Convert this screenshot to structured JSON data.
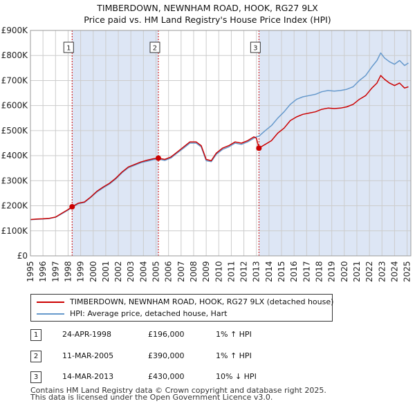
{
  "title": {
    "line1": "TIMBERDOWN, NEWNHAM ROAD, HOOK, RG27 9LX",
    "line2": "Price paid vs. HM Land Registry's House Price Index (HPI)"
  },
  "colors": {
    "property": "#cc0000",
    "hpi": "#6699cc",
    "shade": "#dde6f5",
    "grid": "#cccccc",
    "marker_line": "#cc0000"
  },
  "chart_data": {
    "type": "line",
    "title": "Price paid vs. HM Land Registry's House Price Index (HPI)",
    "xlabel": "",
    "ylabel": "",
    "xlim": [
      1995,
      2025.3
    ],
    "ylim": [
      0,
      900000
    ],
    "y_ticks": [
      0,
      100000,
      200000,
      300000,
      400000,
      500000,
      600000,
      700000,
      800000,
      900000
    ],
    "y_tick_labels": [
      "£0",
      "£100K",
      "£200K",
      "£300K",
      "£400K",
      "£500K",
      "£600K",
      "£700K",
      "£800K",
      "£900K"
    ],
    "x_ticks": [
      1995,
      1996,
      1997,
      1998,
      1999,
      2000,
      2001,
      2002,
      2003,
      2004,
      2005,
      2006,
      2007,
      2008,
      2009,
      2010,
      2011,
      2012,
      2013,
      2014,
      2015,
      2016,
      2017,
      2018,
      2019,
      2020,
      2021,
      2022,
      2023,
      2024,
      2025
    ],
    "grid": true,
    "legend_position": "below",
    "series": [
      {
        "name": "TIMBERDOWN, NEWNHAM ROAD, HOOK, RG27 9LX (detached house)",
        "color": "#cc0000",
        "x": [
          1995.0,
          1995.5,
          1996.0,
          1996.5,
          1997.0,
          1997.5,
          1998.0,
          1998.32,
          1998.8,
          1999.3,
          1999.8,
          2000.3,
          2000.8,
          2001.3,
          2001.8,
          2002.3,
          2002.8,
          2003.3,
          2003.8,
          2004.3,
          2004.8,
          2005.19,
          2005.7,
          2006.2,
          2006.7,
          2007.2,
          2007.7,
          2008.2,
          2008.6,
          2009.0,
          2009.4,
          2009.8,
          2010.3,
          2010.8,
          2011.3,
          2011.8,
          2012.3,
          2012.8,
          2013.0,
          2013.2,
          2013.7,
          2014.2,
          2014.7,
          2015.2,
          2015.7,
          2016.2,
          2016.7,
          2017.2,
          2017.7,
          2018.2,
          2018.7,
          2019.2,
          2019.7,
          2020.2,
          2020.7,
          2021.2,
          2021.7,
          2022.2,
          2022.6,
          2022.9,
          2023.2,
          2023.6,
          2024.0,
          2024.4,
          2024.8,
          2025.1
        ],
        "values": [
          145000,
          147000,
          148000,
          150000,
          155000,
          170000,
          185000,
          196000,
          210000,
          215000,
          235000,
          258000,
          275000,
          290000,
          310000,
          335000,
          355000,
          365000,
          375000,
          382000,
          388000,
          390000,
          385000,
          395000,
          415000,
          435000,
          455000,
          455000,
          440000,
          385000,
          380000,
          410000,
          430000,
          440000,
          455000,
          450000,
          460000,
          475000,
          470000,
          430000,
          445000,
          460000,
          490000,
          510000,
          540000,
          555000,
          565000,
          570000,
          575000,
          585000,
          590000,
          588000,
          590000,
          595000,
          605000,
          625000,
          640000,
          670000,
          690000,
          720000,
          705000,
          690000,
          680000,
          690000,
          670000,
          675000
        ]
      },
      {
        "name": "HPI: Average price, detached house, Hart",
        "color": "#6699cc",
        "x": [
          1995.0,
          1995.5,
          1996.0,
          1996.5,
          1997.0,
          1997.5,
          1998.0,
          1998.32,
          1998.8,
          1999.3,
          1999.8,
          2000.3,
          2000.8,
          2001.3,
          2001.8,
          2002.3,
          2002.8,
          2003.3,
          2003.8,
          2004.3,
          2004.8,
          2005.19,
          2005.7,
          2006.2,
          2006.7,
          2007.2,
          2007.7,
          2008.2,
          2008.6,
          2009.0,
          2009.4,
          2009.8,
          2010.3,
          2010.8,
          2011.3,
          2011.8,
          2012.3,
          2012.8,
          2013.0,
          2013.2,
          2013.7,
          2014.2,
          2014.7,
          2015.2,
          2015.7,
          2016.2,
          2016.7,
          2017.2,
          2017.7,
          2018.2,
          2018.7,
          2019.2,
          2019.7,
          2020.2,
          2020.7,
          2021.2,
          2021.7,
          2022.2,
          2022.6,
          2022.9,
          2023.2,
          2023.6,
          2024.0,
          2024.4,
          2024.8,
          2025.1
        ],
        "values": [
          144000,
          146000,
          147000,
          149000,
          154000,
          168000,
          183000,
          194000,
          208000,
          213000,
          233000,
          255000,
          272000,
          287000,
          307000,
          332000,
          352000,
          362000,
          372000,
          378000,
          384000,
          386000,
          381000,
          391000,
          411000,
          430000,
          450000,
          450000,
          435000,
          380000,
          376000,
          405000,
          425000,
          435000,
          450000,
          445000,
          455000,
          470000,
          475000,
          478000,
          500000,
          520000,
          550000,
          575000,
          605000,
          625000,
          635000,
          640000,
          645000,
          655000,
          660000,
          658000,
          660000,
          665000,
          675000,
          700000,
          720000,
          755000,
          780000,
          810000,
          790000,
          775000,
          765000,
          780000,
          760000,
          770000
        ]
      }
    ],
    "sales": [
      {
        "label": "1",
        "x": 1998.32,
        "value": 196000
      },
      {
        "label": "2",
        "x": 2005.19,
        "value": 390000
      },
      {
        "label": "3",
        "x": 2013.2,
        "value": 430000
      }
    ],
    "shaded_ranges": [
      [
        1998.32,
        2005.19
      ],
      [
        2013.2,
        2025.3
      ]
    ]
  },
  "legend": {
    "property_label": "TIMBERDOWN, NEWNHAM ROAD, HOOK, RG27 9LX (detached house)",
    "hpi_label": "HPI: Average price, detached house, Hart"
  },
  "sales_table": [
    {
      "num": "1",
      "date": "24-APR-1998",
      "price": "£196,000",
      "hpi": "1% ↑ HPI"
    },
    {
      "num": "2",
      "date": "11-MAR-2005",
      "price": "£390,000",
      "hpi": "1% ↑ HPI"
    },
    {
      "num": "3",
      "date": "14-MAR-2013",
      "price": "£430,000",
      "hpi": "10% ↓ HPI"
    }
  ],
  "footer": {
    "line1": "Contains HM Land Registry data © Crown copyright and database right 2025.",
    "line2": "This data is licensed under the Open Government Licence v3.0."
  }
}
